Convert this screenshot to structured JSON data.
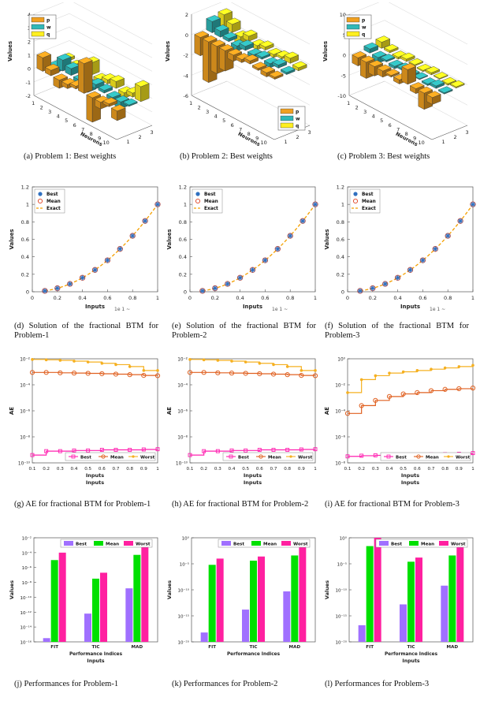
{
  "captions": {
    "a": "(a)  Problem 1:  Best weights",
    "b": "(b)  Problem 2:  Best weights",
    "c": "(c)  Problem 3:  Best weights",
    "d": "(d) Solution of the fractional BTM for Problem-1",
    "e": "(e) Solution of the fractional BTM for Problem-2",
    "f": "(f) Solution of the fractional BTM for Problem-3",
    "g": "(g) AE for fractional BTM for Problem-1",
    "h": "(h) AE for fractional BTM for Problem-2",
    "i": "(i) AE for fractional BTM for Problem-3",
    "j": "(j)  Performances for Problem-1",
    "k": "(k)  Performances for Problem-2",
    "l": "(l)  Performances for Problem-3"
  },
  "colors": {
    "p": "#f0a020",
    "w": "#30b8b8",
    "q": "#ffef20",
    "best": "#ff20b0",
    "mean": "#e06020",
    "worst": "#f5b020",
    "exact": "#f5a000",
    "green": "#00e000",
    "purple": "#a070ff",
    "magenta": "#ff20a0",
    "markerBest": "#3070c0"
  },
  "weights": {
    "ylabel": "Values",
    "xlabel": "Neurons",
    "legend": [
      "p",
      "w",
      "q"
    ],
    "neuron_ticks": [
      "1",
      "2",
      "3",
      "4",
      "5",
      "6",
      "7",
      "8",
      "9",
      "10"
    ],
    "depth_ticks": [
      "1",
      "2",
      "3"
    ],
    "panels": [
      {
        "yticks": [
          "4",
          "3",
          "2",
          "1",
          "0",
          "-1",
          "-2"
        ],
        "ymin": -2,
        "ymax": 4,
        "legend_pos": "top-left",
        "p": [
          1,
          0.4,
          -0.6,
          -0.3,
          0.2,
          2.2,
          -1.8,
          -0.5,
          0.2,
          -0.7
        ],
        "w": [
          -0.5,
          0.8,
          0.5,
          -0.3,
          -0.6,
          0.3,
          0.2,
          -0.2,
          -0.5,
          0.1
        ],
        "q": [
          0.2,
          -0.4,
          0.3,
          0.9,
          -0.2,
          0.3,
          0.5,
          -0.4,
          0.3,
          1.1
        ]
      },
      {
        "yticks": [
          "2",
          "0",
          "-2",
          "-4",
          "-6"
        ],
        "ymin": -6,
        "ymax": 2,
        "legend_pos": "bottom-right",
        "p": [
          -1.8,
          -4,
          -2.7,
          -2,
          -0.6,
          -0.3,
          0.3,
          -0.2,
          -0.4,
          -0.2
        ],
        "w": [
          1.1,
          0.6,
          0.3,
          -0.5,
          0.4,
          -0.3,
          0.2,
          -0.4,
          0.3,
          -0.2
        ],
        "q": [
          1.3,
          0.8,
          -0.9,
          0.5,
          -0.4,
          0.3,
          -0.3,
          0.2,
          0.5,
          -0.3
        ]
      },
      {
        "yticks": [
          "10",
          "5",
          "0",
          "-5",
          "-10"
        ],
        "ymin": -10,
        "ymax": 10,
        "legend_pos": "top-left",
        "p": [
          -2,
          -4,
          -2.3,
          -1.5,
          -0.4,
          -1,
          3.6,
          -1.2,
          -4,
          -1.7
        ],
        "w": [
          1,
          -1.4,
          0.4,
          -0.6,
          0.4,
          -0.6,
          0.2,
          -0.4,
          0.6,
          -0.3
        ],
        "q": [
          1.5,
          0.5,
          -0.5,
          0.6,
          0.3,
          -0.3,
          0.5,
          0.2,
          -0.4,
          0.3
        ]
      }
    ]
  },
  "solution": {
    "xlabel": "Inputs",
    "ylabel": "Values",
    "legend": [
      "Best",
      "Mean",
      "Exact"
    ],
    "xticks": [
      "0",
      "0.2",
      "0.4",
      "0.6",
      "0.8",
      "1"
    ],
    "yticks": [
      "0",
      "0.2",
      "0.4",
      "0.6",
      "0.8",
      "1",
      "1.2"
    ],
    "x": [
      0.1,
      0.2,
      0.3,
      0.4,
      0.5,
      0.6,
      0.7,
      0.8,
      0.9,
      1.0
    ],
    "y": [
      0.01,
      0.04,
      0.09,
      0.16,
      0.25,
      0.36,
      0.49,
      0.64,
      0.81,
      1.0
    ],
    "artifact": "1e        1  ~"
  },
  "ae": {
    "xlabel": "Inputs",
    "xlabel2": "Inputs",
    "ylabel": "AE",
    "legend": [
      "Best",
      "Mean",
      "Worst"
    ],
    "xticks": [
      "0.1",
      "0.2",
      "0.3",
      "0.4",
      "0.5",
      "0.6",
      "0.7",
      "0.8",
      "0.9",
      "1"
    ],
    "panels": [
      {
        "yticks": [
          "10⁻²",
          "10⁻⁴",
          "10⁻⁶",
          "10⁻⁸",
          "10⁻¹⁰"
        ],
        "ymin": -10,
        "ymax": -2,
        "legend_pos": "bottom-right",
        "best": [
          -9.4,
          -9.1,
          -9.1,
          -9.05,
          -9.05,
          -9.0,
          -9.0,
          -9.0,
          -8.97,
          -8.95
        ],
        "mean": [
          -3.05,
          -3.05,
          -3.08,
          -3.1,
          -3.12,
          -3.15,
          -3.18,
          -3.22,
          -3.28,
          -3.3
        ],
        "worst": [
          -2.05,
          -2.08,
          -2.12,
          -2.18,
          -2.25,
          -2.35,
          -2.45,
          -2.6,
          -2.9,
          -2.9
        ]
      },
      {
        "yticks": [
          "10⁻²",
          "10⁻⁴",
          "10⁻⁶",
          "10⁻⁸",
          "10⁻¹⁰"
        ],
        "ymin": -10,
        "ymax": -2,
        "legend_pos": "bottom-right",
        "best": [
          -9.4,
          -9.1,
          -9.1,
          -9.05,
          -9.05,
          -9.0,
          -9.0,
          -9.0,
          -8.97,
          -8.95
        ],
        "mean": [
          -3.05,
          -3.05,
          -3.08,
          -3.1,
          -3.12,
          -3.15,
          -3.18,
          -3.22,
          -3.28,
          -3.3
        ],
        "worst": [
          -2.05,
          -2.08,
          -2.12,
          -2.18,
          -2.25,
          -2.35,
          -2.45,
          -2.6,
          -2.9,
          -2.9
        ]
      },
      {
        "yticks": [
          "10⁰",
          "10⁻²",
          "10⁻⁴",
          "10⁻⁶",
          "10⁻⁸"
        ],
        "ymin": -8,
        "ymax": 0,
        "legend_pos": "bottom-right",
        "best": [
          -7.5,
          -7.45,
          -7.42,
          -7.4,
          -7.38,
          -7.36,
          -7.35,
          -7.33,
          -7.3,
          -7.25
        ],
        "mean": [
          -4.2,
          -3.6,
          -3.2,
          -2.9,
          -2.7,
          -2.6,
          -2.45,
          -2.35,
          -2.3,
          -2.25
        ],
        "worst": [
          -2.6,
          -1.6,
          -1.3,
          -1.1,
          -1.0,
          -0.9,
          -0.8,
          -0.7,
          -0.6,
          -0.5
        ]
      }
    ]
  },
  "perf": {
    "ylabel": "Values",
    "xlabel": "Performance Indices",
    "xlabel2": "Inputs",
    "categories": [
      "FIT",
      "TIC",
      "MAD"
    ],
    "legend": [
      "Best",
      "Mean",
      "Worst"
    ],
    "panels": [
      {
        "yticks": [
          "10⁻²",
          "10⁻⁴",
          "10⁻⁶",
          "10⁻⁸",
          "10⁻¹⁰",
          "10⁻¹²",
          "10⁻¹⁴",
          "10⁻¹⁶"
        ],
        "ymin": -16,
        "ymax": -2,
        "best": [
          -15.5,
          -12.2,
          -8.8
        ],
        "mean": [
          -5,
          -7.5,
          -4.3
        ],
        "worst": [
          -4,
          -6.7,
          -3.2
        ],
        "show_xlabel2": true
      },
      {
        "yticks": [
          "10⁰",
          "10⁻⁵",
          "10⁻¹⁰",
          "10⁻¹⁵",
          "10⁻²⁰"
        ],
        "ymin": -20,
        "ymax": 0,
        "best": [
          -18.2,
          -13.8,
          -10.3
        ],
        "mean": [
          -5.2,
          -4.4,
          -3.4
        ],
        "worst": [
          -4,
          -3.6,
          -1.8
        ],
        "show_xlabel2": false
      },
      {
        "yticks": [
          "10⁰",
          "10⁻⁵",
          "10⁻¹⁰",
          "10⁻¹⁵",
          "10⁻²⁰"
        ],
        "ymin": -20,
        "ymax": 0,
        "best": [
          -16.8,
          -12.8,
          -9.2
        ],
        "mean": [
          -1.6,
          -4.6,
          -3.4
        ],
        "worst": [
          0,
          -3.8,
          -1.4
        ],
        "show_xlabel2": true
      }
    ]
  }
}
